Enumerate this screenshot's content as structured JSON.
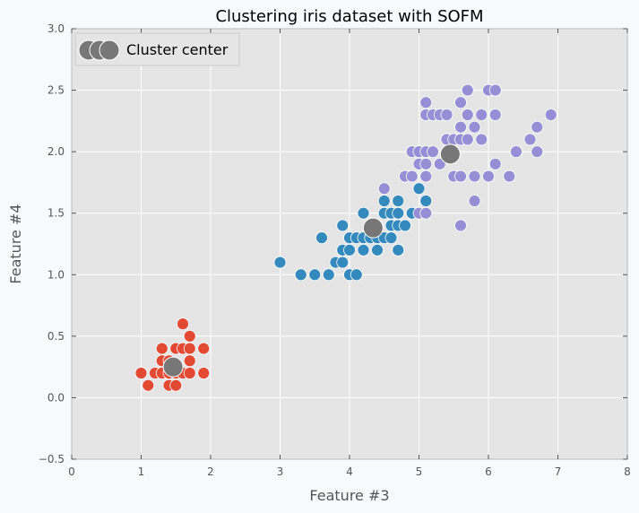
{
  "chart_data": {
    "type": "scatter",
    "title": "Clustering iris dataset with SOFM",
    "xlabel": "Feature #3",
    "ylabel": "Feature #4",
    "xlim": [
      0,
      8
    ],
    "ylim": [
      -0.5,
      3.0
    ],
    "xticks": [
      0,
      1,
      2,
      3,
      4,
      5,
      6,
      7,
      8
    ],
    "yticks": [
      -0.5,
      0.0,
      0.5,
      1.0,
      1.5,
      2.0,
      2.5,
      3.0
    ],
    "xtick_labels": [
      "0",
      "1",
      "2",
      "3",
      "4",
      "5",
      "6",
      "7",
      "8"
    ],
    "ytick_labels": [
      "−0.5",
      "0.0",
      "0.5",
      "1.0",
      "1.5",
      "2.0",
      "2.5",
      "3.0"
    ],
    "grid": true,
    "legend_position": "top-left",
    "legend": [
      "Cluster center"
    ],
    "colors": {
      "plot_background": "#e5e5e5",
      "grid": "#ffffff",
      "cluster_1": "#e24a33",
      "cluster_2": "#348abd",
      "cluster_3": "#988ed5",
      "center": "#777777"
    },
    "series": [
      {
        "color": "#e24a33",
        "points": [
          [
            1.0,
            0.2
          ],
          [
            1.1,
            0.1
          ],
          [
            1.2,
            0.2
          ],
          [
            1.3,
            0.2
          ],
          [
            1.3,
            0.3
          ],
          [
            1.3,
            0.4
          ],
          [
            1.4,
            0.1
          ],
          [
            1.4,
            0.2
          ],
          [
            1.4,
            0.3
          ],
          [
            1.5,
            0.1
          ],
          [
            1.5,
            0.2
          ],
          [
            1.5,
            0.4
          ],
          [
            1.6,
            0.2
          ],
          [
            1.6,
            0.4
          ],
          [
            1.6,
            0.6
          ],
          [
            1.7,
            0.2
          ],
          [
            1.7,
            0.3
          ],
          [
            1.7,
            0.4
          ],
          [
            1.7,
            0.5
          ],
          [
            1.9,
            0.2
          ],
          [
            1.9,
            0.4
          ]
        ]
      },
      {
        "color": "#348abd",
        "points": [
          [
            3.0,
            1.1
          ],
          [
            3.3,
            1.0
          ],
          [
            3.5,
            1.0
          ],
          [
            3.6,
            1.3
          ],
          [
            3.7,
            1.0
          ],
          [
            3.8,
            1.1
          ],
          [
            3.9,
            1.1
          ],
          [
            3.9,
            1.2
          ],
          [
            3.9,
            1.4
          ],
          [
            4.0,
            1.0
          ],
          [
            4.0,
            1.2
          ],
          [
            4.0,
            1.3
          ],
          [
            4.1,
            1.0
          ],
          [
            4.1,
            1.3
          ],
          [
            4.2,
            1.2
          ],
          [
            4.2,
            1.3
          ],
          [
            4.2,
            1.5
          ],
          [
            4.3,
            1.3
          ],
          [
            4.4,
            1.2
          ],
          [
            4.4,
            1.3
          ],
          [
            4.4,
            1.4
          ],
          [
            4.5,
            1.3
          ],
          [
            4.5,
            1.5
          ],
          [
            4.5,
            1.6
          ],
          [
            4.6,
            1.3
          ],
          [
            4.6,
            1.4
          ],
          [
            4.6,
            1.5
          ],
          [
            4.7,
            1.2
          ],
          [
            4.7,
            1.4
          ],
          [
            4.7,
            1.5
          ],
          [
            4.7,
            1.6
          ],
          [
            4.8,
            1.4
          ],
          [
            4.9,
            1.5
          ],
          [
            5.0,
            1.7
          ],
          [
            5.1,
            1.6
          ]
        ]
      },
      {
        "color": "#988ed5",
        "points": [
          [
            4.5,
            1.7
          ],
          [
            4.8,
            1.8
          ],
          [
            4.9,
            1.8
          ],
          [
            4.9,
            2.0
          ],
          [
            5.0,
            1.5
          ],
          [
            5.0,
            1.9
          ],
          [
            5.0,
            2.0
          ],
          [
            5.1,
            1.5
          ],
          [
            5.1,
            1.8
          ],
          [
            5.1,
            1.9
          ],
          [
            5.1,
            2.0
          ],
          [
            5.1,
            2.3
          ],
          [
            5.1,
            2.4
          ],
          [
            5.2,
            2.0
          ],
          [
            5.2,
            2.3
          ],
          [
            5.3,
            1.9
          ],
          [
            5.3,
            2.3
          ],
          [
            5.4,
            2.1
          ],
          [
            5.4,
            2.3
          ],
          [
            5.5,
            1.8
          ],
          [
            5.5,
            2.1
          ],
          [
            5.6,
            1.4
          ],
          [
            5.6,
            1.8
          ],
          [
            5.6,
            2.1
          ],
          [
            5.6,
            2.2
          ],
          [
            5.6,
            2.4
          ],
          [
            5.7,
            2.1
          ],
          [
            5.7,
            2.3
          ],
          [
            5.7,
            2.5
          ],
          [
            5.8,
            1.6
          ],
          [
            5.8,
            1.8
          ],
          [
            5.8,
            2.2
          ],
          [
            5.9,
            2.1
          ],
          [
            5.9,
            2.3
          ],
          [
            6.0,
            1.8
          ],
          [
            6.0,
            2.5
          ],
          [
            6.1,
            1.9
          ],
          [
            6.1,
            2.3
          ],
          [
            6.1,
            2.5
          ],
          [
            6.3,
            1.8
          ],
          [
            6.4,
            2.0
          ],
          [
            6.6,
            2.1
          ],
          [
            6.7,
            2.0
          ],
          [
            6.7,
            2.2
          ],
          [
            6.9,
            2.3
          ]
        ]
      }
    ],
    "cluster_centers": [
      [
        1.46,
        0.25
      ],
      [
        4.34,
        1.38
      ],
      [
        5.45,
        1.98
      ]
    ]
  }
}
